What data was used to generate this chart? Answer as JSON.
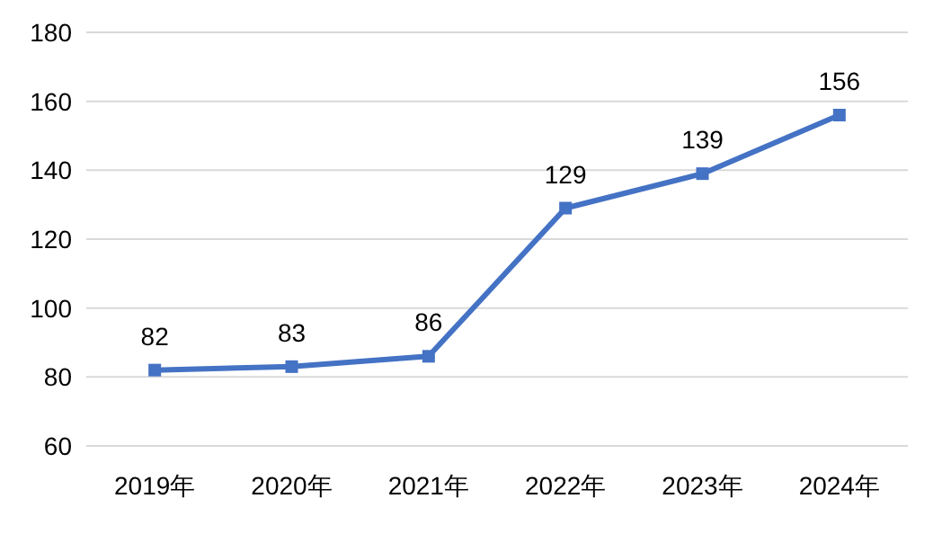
{
  "chart_data": {
    "type": "line",
    "categories": [
      "2019年",
      "2020年",
      "2021年",
      "2022年",
      "2023年",
      "2024年"
    ],
    "series": [
      {
        "color": "#4472c4",
        "values": [
          82,
          83,
          86,
          129,
          139,
          156
        ]
      }
    ],
    "ylim": [
      60,
      180
    ],
    "yticks": [
      60,
      80,
      100,
      120,
      140,
      160,
      180
    ],
    "grid": "y",
    "marker": "square",
    "line_style": "solid",
    "data_labels": true
  }
}
